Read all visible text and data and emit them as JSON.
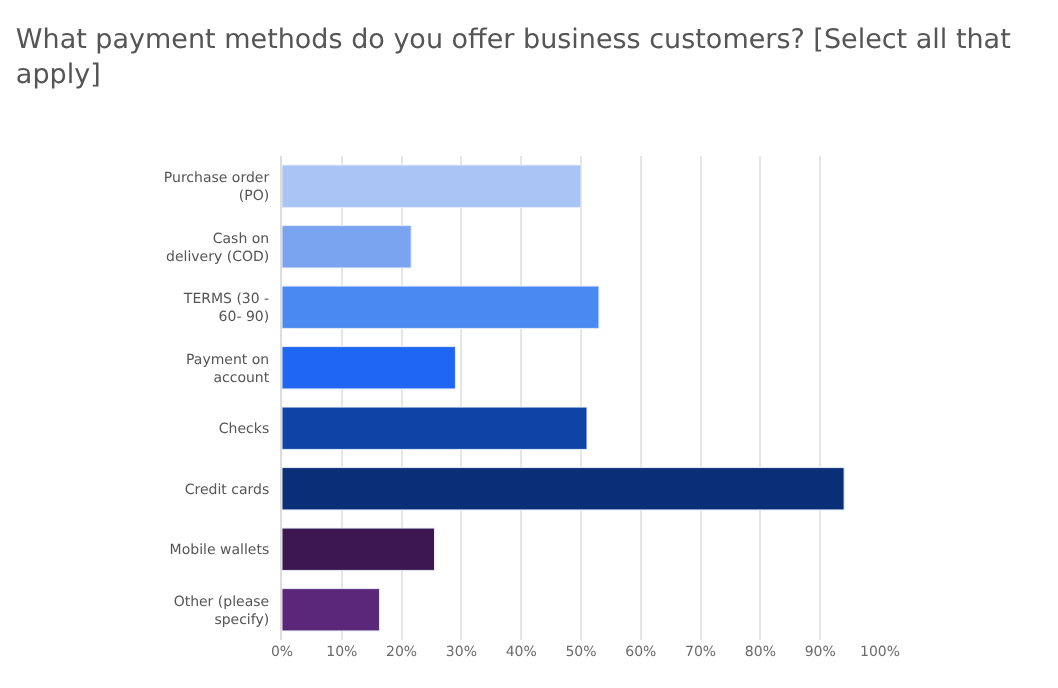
{
  "chart_data": {
    "type": "bar",
    "orientation": "horizontal",
    "title": "What payment methods do you offer business customers? [Select all that\napply]",
    "categories": [
      "Purchase order\n(PO)",
      "Cash on\ndelivery (COD)",
      "TERMS (30 -\n60- 90)",
      "Payment on\naccount",
      "Checks",
      "Credit cards",
      "Mobile wallets",
      "Other (please\nspecify)"
    ],
    "values": [
      50,
      21.6,
      53,
      29,
      51,
      94,
      25.5,
      16.3
    ],
    "colors": [
      "#a9c4f5",
      "#7ba4f0",
      "#4a8af0",
      "#1f66f2",
      "#0f44a6",
      "#0b2f76",
      "#3d1850",
      "#5b2778"
    ],
    "xlim": [
      0,
      100
    ],
    "xticks": [
      {
        "value": 0,
        "label": "0%"
      },
      {
        "value": 10,
        "label": "10%"
      },
      {
        "value": 20,
        "label": "20%"
      },
      {
        "value": 30,
        "label": "30%"
      },
      {
        "value": 40,
        "label": "40%"
      },
      {
        "value": 50,
        "label": "50%"
      },
      {
        "value": 60,
        "label": "60%"
      },
      {
        "value": 70,
        "label": "70%"
      },
      {
        "value": 80,
        "label": "80%"
      },
      {
        "value": 90,
        "label": "90%"
      },
      {
        "value": 100,
        "label": "100%"
      }
    ],
    "grid": "x"
  }
}
